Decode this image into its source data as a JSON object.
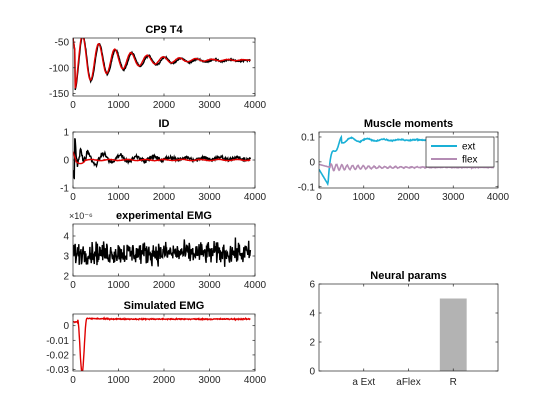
{
  "chart_data": [
    {
      "id": "cp9",
      "type": "line",
      "title": "CP9 T4",
      "xlim": [
        0,
        4000
      ],
      "ylim": [
        -155,
        -42
      ],
      "xticks": [
        0,
        1000,
        2000,
        3000,
        4000
      ],
      "yticks": [
        -150,
        -100,
        -50
      ],
      "xticklabels": [
        "0",
        "1000",
        "2000",
        "3000",
        "4000"
      ],
      "yticklabels": [
        "-150",
        "-100",
        "-50"
      ],
      "series": [
        {
          "color": "#000000",
          "model": "osc",
          "x_end": 3900,
          "params": {
            "base": -86,
            "amp": -58,
            "decay": 0.0011,
            "period": 360,
            "phase": 0.0,
            "noise": 1.5
          }
        },
        {
          "color": "#e00000",
          "model": "osc",
          "x_end": 3900,
          "params": {
            "base": -85,
            "amp": -58,
            "decay": 0.00115,
            "period": 355,
            "phase": 0.12,
            "noise": 0.5
          }
        }
      ]
    },
    {
      "id": "id",
      "type": "line",
      "title": "ID",
      "xlim": [
        0,
        4000
      ],
      "ylim": [
        -1,
        1
      ],
      "xticks": [
        0,
        1000,
        2000,
        3000,
        4000
      ],
      "yticks": [
        -1,
        0,
        1
      ],
      "xticklabels": [
        "0",
        "1000",
        "2000",
        "3000",
        "4000"
      ],
      "yticklabels": [
        "-1",
        "0",
        "1"
      ],
      "series": [
        {
          "color": "#000000",
          "model": "id_black",
          "x_end": 3900,
          "params": {
            "noise": 0.07
          }
        },
        {
          "color": "#e00000",
          "model": "id_red",
          "x_end": 3900,
          "params": {
            "noise": 0.01
          }
        }
      ]
    },
    {
      "id": "emg_exp",
      "type": "line",
      "title": "experimental EMG",
      "exponent_label": "×10⁻⁶",
      "xlim": [
        0,
        4000
      ],
      "ylim": [
        2,
        4.6
      ],
      "xticks": [
        0,
        1000,
        2000,
        3000,
        4000
      ],
      "yticks": [
        2,
        3,
        4
      ],
      "xticklabels": [
        "0",
        "1000",
        "2000",
        "3000",
        "4000"
      ],
      "yticklabels": [
        "2",
        "3",
        "4"
      ],
      "series": [
        {
          "color": "#000000",
          "model": "noise",
          "x_end": 3900,
          "params": {
            "mean": 3.15,
            "sd": 0.33,
            "min": 2.05,
            "max": 4.5
          }
        }
      ]
    },
    {
      "id": "emg_sim",
      "type": "line",
      "title": "Simulated EMG",
      "xlim": [
        0,
        4000
      ],
      "ylim": [
        -0.031,
        0.008
      ],
      "xticks": [
        0,
        1000,
        2000,
        3000,
        4000
      ],
      "yticks": [
        -0.03,
        -0.02,
        -0.01,
        0
      ],
      "xticklabels": [
        "0",
        "1000",
        "2000",
        "3000",
        "4000"
      ],
      "yticklabels": [
        "-0.03",
        "-0.02",
        "-0.01",
        "0"
      ],
      "series": [
        {
          "color": "#e00000",
          "model": "sim",
          "x_end": 3900,
          "params": {
            "level": 0.0045,
            "dip": -0.032,
            "dip_at": 200,
            "noise": 0.0004
          }
        }
      ]
    },
    {
      "id": "muscle",
      "type": "line",
      "title": "Muscle moments",
      "xlim": [
        0,
        4000
      ],
      "ylim": [
        -0.105,
        0.12
      ],
      "xticks": [
        0,
        1000,
        2000,
        3000,
        4000
      ],
      "yticks": [
        -0.1,
        0,
        0.1
      ],
      "xticklabels": [
        "0",
        "1000",
        "2000",
        "3000",
        "4000"
      ],
      "yticklabels": [
        "-0.1",
        "0",
        "0.1"
      ],
      "legend": {
        "placement": "top-right",
        "entries": [
          "ext",
          "flex"
        ]
      },
      "series": [
        {
          "name": "ext",
          "color": "#1ab0d6",
          "width": 1.6,
          "model": "ext",
          "x_end": 3900,
          "params": {
            "level": 0.088,
            "noise": 0.002
          }
        },
        {
          "name": "flex",
          "color": "#b48cb4",
          "width": 1.6,
          "model": "flex",
          "x_end": 3900,
          "params": {
            "level": -0.022,
            "noise": 0.0015
          }
        }
      ]
    },
    {
      "id": "neural",
      "type": "bar",
      "title": "Neural params",
      "categories": [
        "a Ext",
        "aFlex",
        "R"
      ],
      "values": [
        0,
        0,
        5
      ],
      "ylim": [
        0,
        6
      ],
      "yticks": [
        0,
        2,
        4,
        6
      ],
      "yticklabels": [
        "0",
        "2",
        "4",
        "6"
      ],
      "bar_color": "#b3b3b3"
    }
  ]
}
